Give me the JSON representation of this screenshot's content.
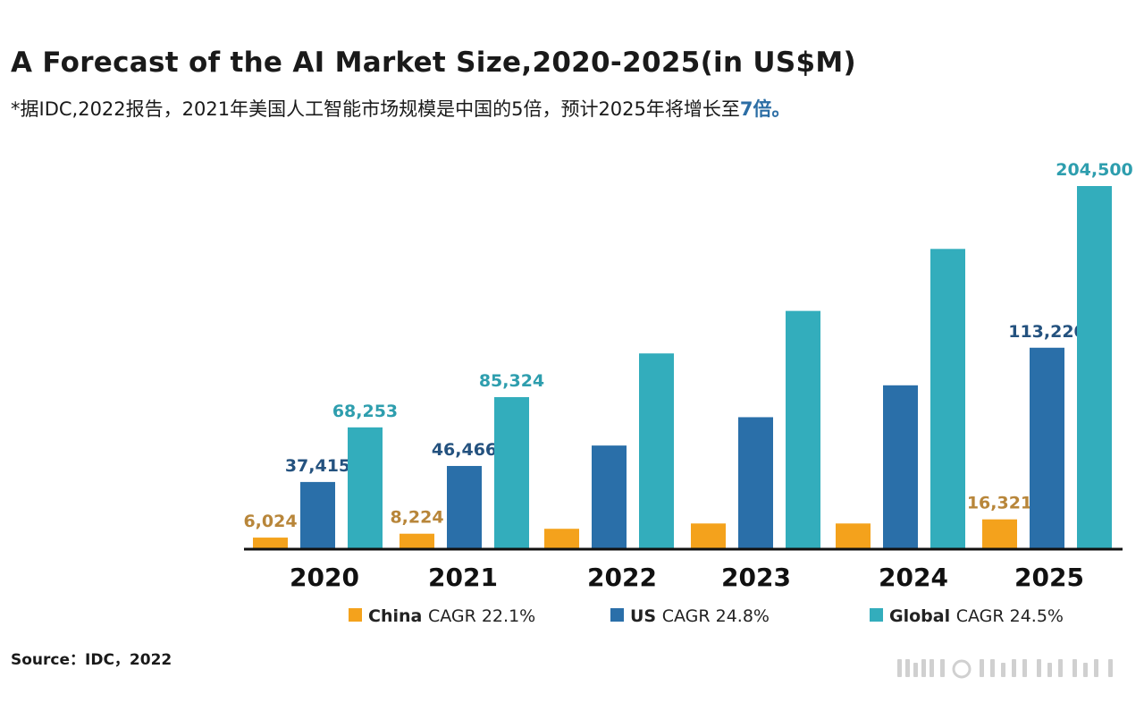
{
  "header": {
    "title": "A Forecast of the AI Market Size,2020-2025(in US$M)",
    "subtitle_main": "*据IDC,2022报告，2021年美国人工智能市场规模是中国的5倍，预计2025年将增长至",
    "subtitle_highlight": "7倍。"
  },
  "footer": {
    "source": "Source：IDC，2022"
  },
  "colors": {
    "china": "#f4a21c",
    "us": "#2a6fa9",
    "global": "#33adbc",
    "china_label": "#b8863a",
    "us_label": "#24527f",
    "global_label": "#2e9eae"
  },
  "chart_data": {
    "type": "bar",
    "title": "A Forecast of the AI Market Size,2020-2025(in US$M)",
    "categories": [
      "2020",
      "2021",
      "2022",
      "2023",
      "2024",
      "2025"
    ],
    "ylim": [
      0,
      210000
    ],
    "grid": false,
    "legend_position": "bottom",
    "series": [
      {
        "key": "china",
        "name": "China",
        "legend_suffix": "CAGR 22.1%",
        "values": [
          6024,
          8224,
          11000,
          14000,
          14000,
          16321
        ],
        "labels": [
          "6,024",
          "8,224",
          null,
          null,
          null,
          "16,321"
        ]
      },
      {
        "key": "us",
        "name": "US",
        "legend_suffix": "CAGR 24.8%",
        "values": [
          37415,
          46466,
          58000,
          74000,
          92000,
          113220
        ],
        "labels": [
          "37,415",
          "46,466",
          null,
          null,
          null,
          "113,220"
        ]
      },
      {
        "key": "global",
        "name": "Global",
        "legend_suffix": "CAGR 24.5%",
        "values": [
          68253,
          85324,
          110000,
          134000,
          169000,
          204500
        ],
        "labels": [
          "68,253",
          "85,324",
          null,
          null,
          null,
          "204,500"
        ]
      }
    ]
  }
}
